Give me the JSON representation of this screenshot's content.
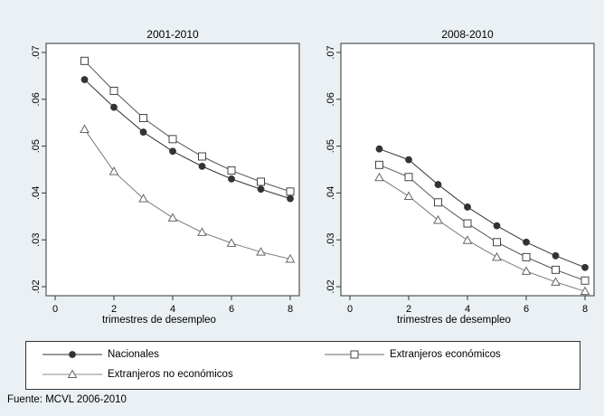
{
  "chart_data": [
    {
      "type": "line",
      "title": "2001-2010",
      "xlabel": "trimestres de desempleo",
      "ylabel": "",
      "xlim": [
        0,
        8
      ],
      "ylim": [
        0.02,
        0.07
      ],
      "x_ticks": [
        "0",
        "2",
        "4",
        "6",
        "8"
      ],
      "y_ticks": [
        ".02",
        ".03",
        ".04",
        ".05",
        ".06",
        ".07"
      ],
      "x": [
        1,
        2,
        3,
        4,
        5,
        6,
        7,
        8
      ],
      "series": [
        {
          "name": "Nacionales",
          "marker": "filled-circle",
          "values": [
            0.0642,
            0.0583,
            0.053,
            0.0489,
            0.0457,
            0.043,
            0.0408,
            0.0388
          ]
        },
        {
          "name": "Extranjeros económicos",
          "marker": "hollow-square",
          "values": [
            0.0682,
            0.0618,
            0.056,
            0.0515,
            0.0478,
            0.0448,
            0.0424,
            0.0403
          ]
        },
        {
          "name": "Extranjeros no económicos",
          "marker": "hollow-triangle",
          "values": [
            0.0536,
            0.0446,
            0.0388,
            0.0347,
            0.0316,
            0.0293,
            0.0274,
            0.0259
          ]
        }
      ]
    },
    {
      "type": "line",
      "title": "2008-2010",
      "xlabel": "trimestres de desempleo",
      "ylabel": "",
      "xlim": [
        0,
        8
      ],
      "ylim": [
        0.02,
        0.07
      ],
      "x_ticks": [
        "0",
        "2",
        "4",
        "6",
        "8"
      ],
      "y_ticks": [
        ".02",
        ".03",
        ".04",
        ".05",
        ".06",
        ".07"
      ],
      "x": [
        1,
        2,
        3,
        4,
        5,
        6,
        7,
        8
      ],
      "series": [
        {
          "name": "Nacionales",
          "marker": "filled-circle",
          "values": [
            0.0494,
            0.0471,
            0.0418,
            0.037,
            0.033,
            0.0295,
            0.0266,
            0.0241
          ]
        },
        {
          "name": "Extranjeros económicos",
          "marker": "hollow-square",
          "values": [
            0.046,
            0.0434,
            0.038,
            0.0335,
            0.0295,
            0.0263,
            0.0236,
            0.0213
          ]
        },
        {
          "name": "Extranjeros no económicos",
          "marker": "hollow-triangle",
          "values": [
            0.0433,
            0.0393,
            0.0342,
            0.0299,
            0.0263,
            0.0233,
            0.021,
            0.019
          ]
        }
      ]
    }
  ],
  "legend": {
    "placement": "bottom",
    "items": [
      "Nacionales",
      "Extranjeros económicos",
      "Extranjeros no económicos"
    ]
  },
  "source_note": "Fuente: MCVL 2006-2010",
  "colors": {
    "background": "#eaf0f3",
    "plot_background": "#ffffff",
    "line": "#333333",
    "gray_line": "#7a7a7a"
  }
}
